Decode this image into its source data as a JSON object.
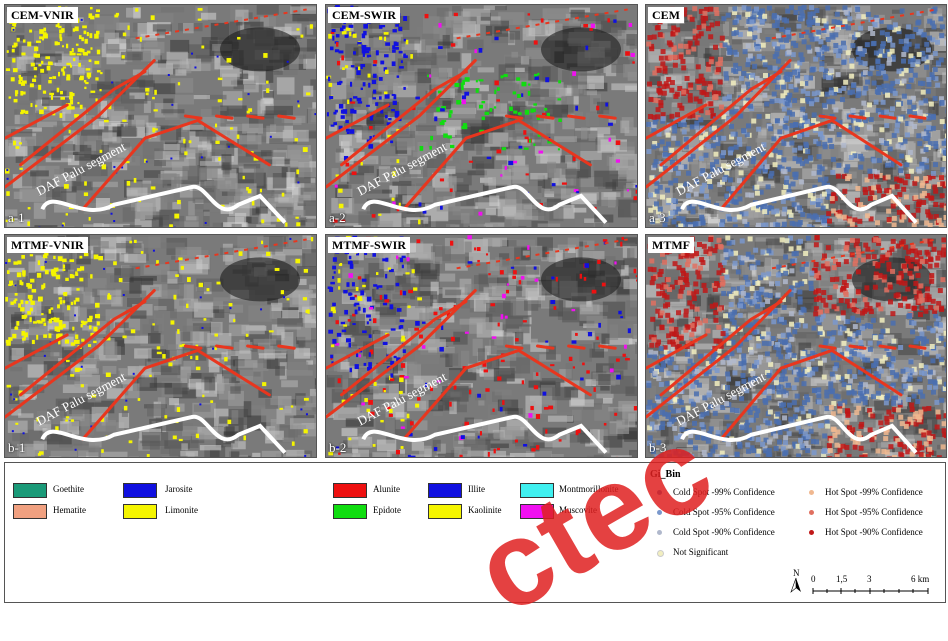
{
  "panels": [
    {
      "title": "CEM-VNIR",
      "id": "a-1",
      "overlay": "vnir"
    },
    {
      "title": "CEM-SWIR",
      "id": "a-2",
      "overlay": "swir"
    },
    {
      "title": "CEM",
      "id": "a-3",
      "overlay": "hotspot"
    },
    {
      "title": "MTMF-VNIR",
      "id": "b-1",
      "overlay": "vnir"
    },
    {
      "title": "MTMF-SWIR",
      "id": "b-2",
      "overlay": "swir"
    },
    {
      "title": "MTMF",
      "id": "b-3",
      "overlay": "hotspot"
    }
  ],
  "fault_label": "DAF Palu segment",
  "legend": {
    "vnir": [
      {
        "label": "Goethite",
        "color": "#1a9a78"
      },
      {
        "label": "Hematite",
        "color": "#f0a080"
      },
      {
        "label": "Jarosite",
        "color": "#1010e0"
      },
      {
        "label": "Limonite",
        "color": "#f5f500"
      }
    ],
    "swir": [
      {
        "label": "Alunite",
        "color": "#ee1010"
      },
      {
        "label": "Epidote",
        "color": "#10dd10"
      },
      {
        "label": "Illite",
        "color": "#1010e0"
      },
      {
        "label": "Kaolinite",
        "color": "#f5f500"
      },
      {
        "label": "Montmorillonite",
        "color": "#40f0f0"
      },
      {
        "label": "Muscovite",
        "color": "#f010f0"
      }
    ],
    "gi_bin": {
      "title": "Gi_Bin",
      "items": [
        {
          "label": "Cold Spot -99% Confidence",
          "color": "#4a6fb0"
        },
        {
          "label": "Cold Spot -95% Confidence",
          "color": "#7a98cc"
        },
        {
          "label": "Cold Spot -90% Confidence",
          "color": "#b0b8cc"
        },
        {
          "label": "Not Significant",
          "color": "#f2eec0"
        },
        {
          "label": "Hot Spot -99% Confidence",
          "color": "#f0b890"
        },
        {
          "label": "Hot Spot -95% Confidence",
          "color": "#e07060"
        },
        {
          "label": "Hot Spot -90% Confidence",
          "color": "#c01818"
        }
      ]
    },
    "scale": {
      "north": "N",
      "ticks": [
        "0",
        "1,5",
        "3",
        "6 km"
      ]
    }
  },
  "watermark": "ctec"
}
